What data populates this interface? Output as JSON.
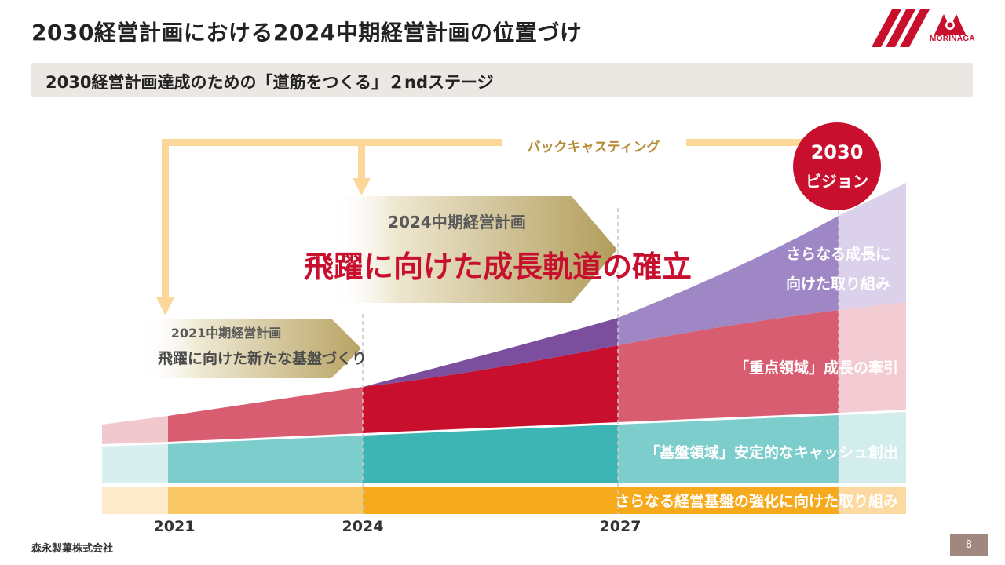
{
  "header": {
    "title": "2030経営計画における2024中期経営計画の位置づけ",
    "logo_text": "MORINAGA",
    "subtitle": "2030経営計画達成のための「道筋をつくる」２ndステージ"
  },
  "diagram": {
    "backcasting_label": "バックキャスティング",
    "vision": {
      "line1": "2030",
      "line2": "ビジョン"
    },
    "plan_2024": {
      "title": "2024中期経営計画",
      "slogan": "飛躍に向けた成長軌道の確立"
    },
    "plan_2021": {
      "title": "2021中期経営計画",
      "slogan": "飛躍に向けた新たな基盤づくり"
    },
    "layers": {
      "growth": {
        "line1": "さらなる成長に",
        "line2": "向けた取り組み"
      },
      "focus": "「重点領域」成長の牽引",
      "base": "「基盤領域」安定的なキャッシュ創出",
      "foundation": "さらなる経営基盤の強化に向けた取り組み"
    },
    "years": [
      "2021",
      "2024",
      "2027"
    ]
  },
  "footer": {
    "company": "森永製菓株式会社",
    "page": "8"
  },
  "colors": {
    "accent_red": "#c8102e",
    "purple": "#8a6bb0",
    "teal": "#3db5b5",
    "orange": "#f6a91a",
    "arrow_tan": "#fcd79a"
  }
}
